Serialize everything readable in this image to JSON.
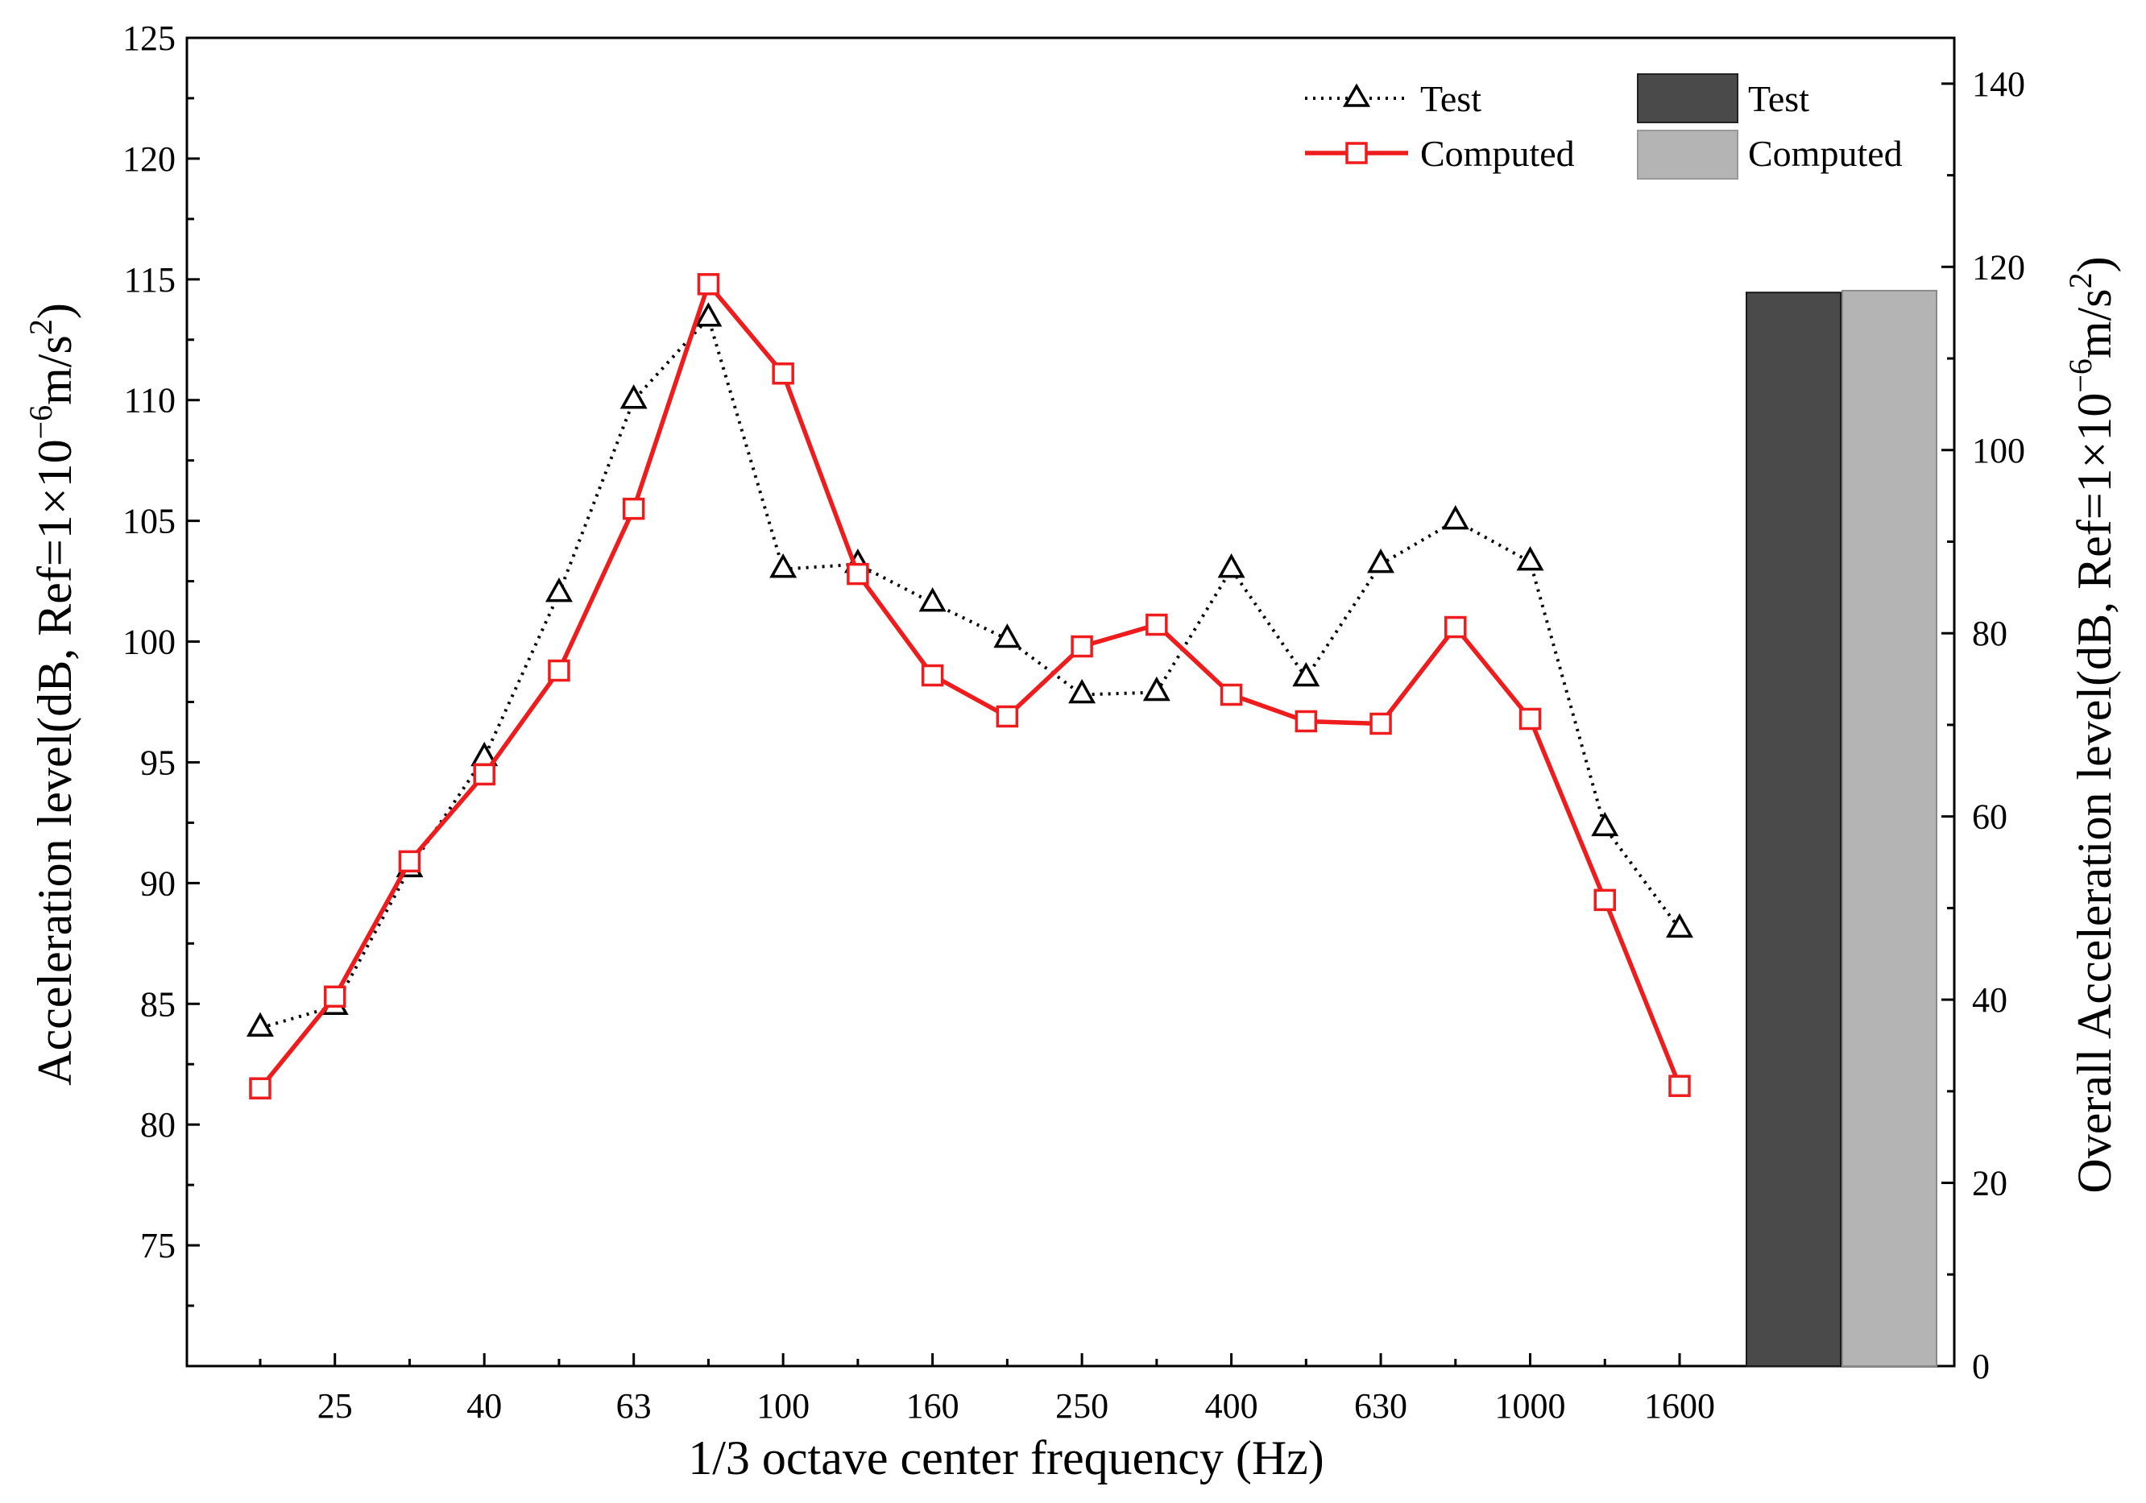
{
  "chart_data": {
    "type": "line",
    "title": "",
    "xlabel": "1/3 octave center frequency (Hz)",
    "ylabel": "Acceleration level(dB, Ref=1×10⁻⁶m/s²)",
    "y2label": "Overall Acceleration level(dB, Ref=1×10⁻⁶m/s²)",
    "ylim": [
      70,
      125
    ],
    "y2lim": [
      0,
      145
    ],
    "yticks": [
      "75",
      "80",
      "85",
      "90",
      "95",
      "100",
      "105",
      "110",
      "115",
      "120",
      "125"
    ],
    "y2ticks": [
      "0",
      "20",
      "40",
      "60",
      "80",
      "100",
      "120",
      "140"
    ],
    "x": [
      20,
      25,
      31.5,
      40,
      50,
      63,
      80,
      100,
      125,
      160,
      200,
      250,
      315,
      400,
      500,
      630,
      800,
      1000,
      1250,
      1600
    ],
    "x_tick_labels": [
      "25",
      "40",
      "63",
      "100",
      "160",
      "250",
      "400",
      "630",
      "1000",
      "1600"
    ],
    "series": [
      {
        "name": "Test",
        "style": "dotted",
        "marker": "triangle",
        "color": "#000000",
        "values": [
          84.0,
          84.9,
          90.6,
          95.2,
          102.0,
          110.0,
          113.4,
          103.0,
          103.2,
          101.6,
          100.1,
          97.8,
          97.9,
          103.0,
          98.5,
          103.2,
          105.0,
          103.3,
          92.3,
          88.1
        ]
      },
      {
        "name": "Computed",
        "style": "solid",
        "marker": "square",
        "color": "#ee1c1c",
        "values": [
          81.5,
          85.3,
          90.9,
          94.5,
          98.8,
          105.5,
          114.8,
          111.1,
          102.8,
          98.6,
          96.9,
          99.8,
          100.7,
          97.8,
          96.7,
          96.6,
          100.6,
          96.8,
          89.3,
          81.6
        ]
      }
    ],
    "overall_bars": [
      {
        "name": "Test",
        "value": 117.2,
        "color": "#4a4a4a"
      },
      {
        "name": "Computed",
        "value": 117.4,
        "color": "#b4b4b4"
      }
    ],
    "legend_position": "top-right",
    "grid": false
  }
}
